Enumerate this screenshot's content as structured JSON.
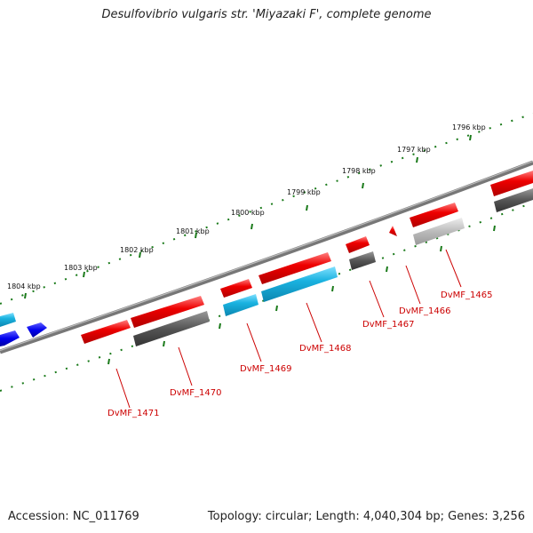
{
  "title": "Desulfovibrio vulgaris str. 'Miyazaki F', complete genome",
  "footer": {
    "accession": "Accession: NC_011769",
    "summary": "Topology: circular; Length: 4,040,304 bp; Genes: 3,256"
  },
  "scale_labels": [
    "1804 kbp",
    "1803 kbp",
    "1802 kbp",
    "1801 kbp",
    "1800 kbp",
    "1799 kbp",
    "1798 kbp",
    "1797 kbp",
    "1796 kbp"
  ],
  "gene_labels": [
    "DvMF_1471",
    "DvMF_1470",
    "DvMF_1469",
    "DvMF_1468",
    "DvMF_1467",
    "DvMF_1466",
    "DvMF_1465"
  ],
  "colors": {
    "forward_gene": "#ee0000",
    "reverse_gene": "#0000ee",
    "cds_cyan": "#1ab2e0",
    "cds_grey": "#555555",
    "cds_lightgrey": "#bbbbbb",
    "backbone": "#777777",
    "tick": "#1a7a1a",
    "label": "#cc0000"
  }
}
